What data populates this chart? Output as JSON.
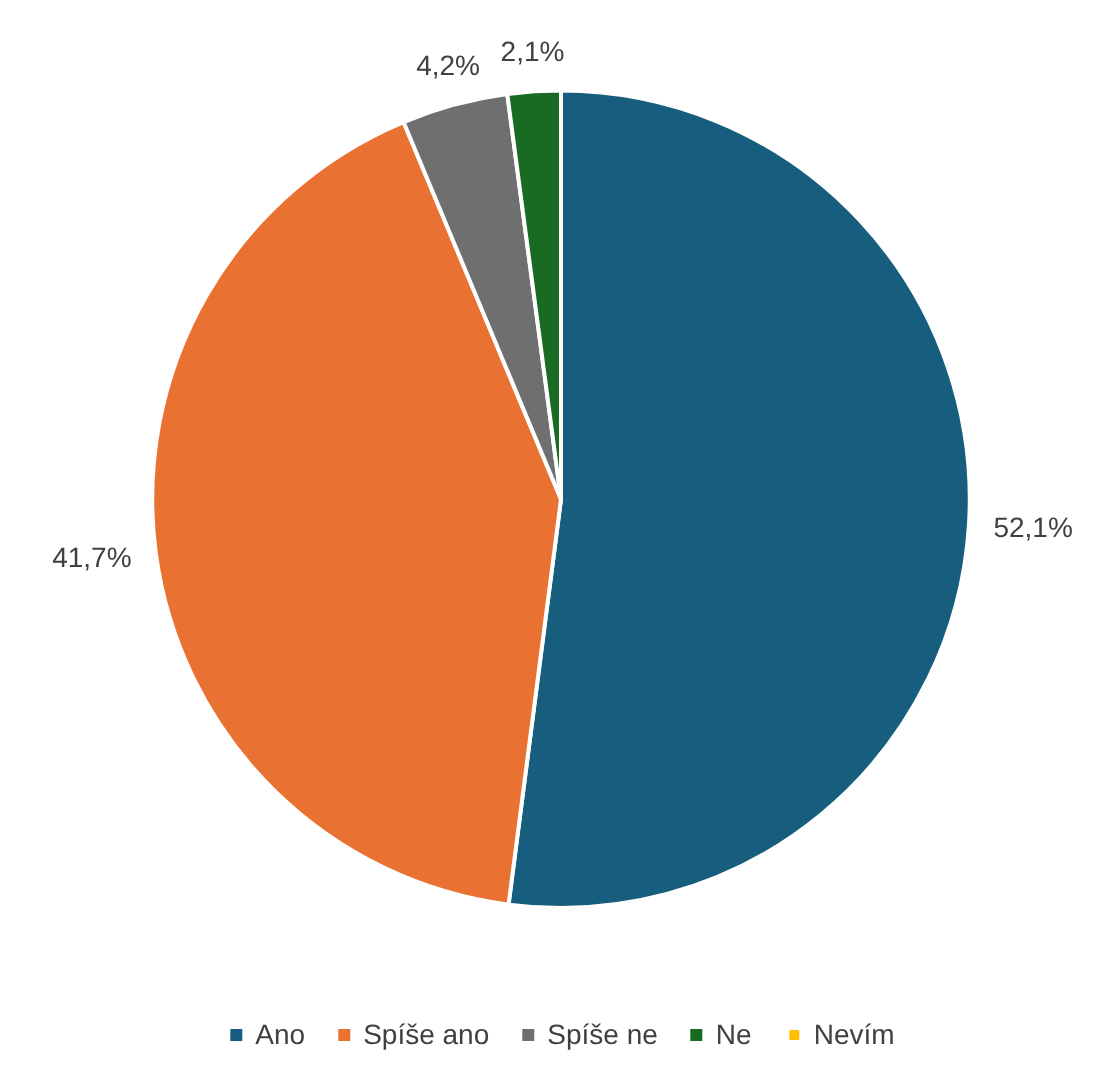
{
  "chart_data": {
    "type": "pie",
    "categories": [
      "Ano",
      "Spíše ano",
      "Spíše ne",
      "Ne",
      "Nevím"
    ],
    "values": [
      52.1,
      41.7,
      4.2,
      2.1,
      0
    ],
    "colors": [
      "#175e7e",
      "#e97132",
      "#6f6f6f",
      "#196b24",
      "#ffc000"
    ],
    "value_labels": [
      "52,1%",
      "41,7%",
      "4,2%",
      "2,1%",
      null
    ],
    "legend": "bottom"
  }
}
